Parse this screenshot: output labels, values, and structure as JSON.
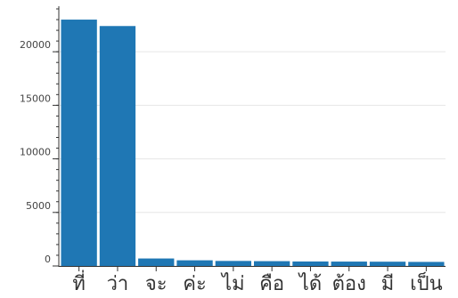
{
  "chart_data": {
    "type": "bar",
    "title": "",
    "xlabel": "",
    "ylabel": "",
    "categories": [
      "ที่",
      "ว่า",
      "จะ",
      "ค่ะ",
      "ไม่",
      "คือ",
      "ได้",
      "ต้อง",
      "มี",
      "เป็น"
    ],
    "values": [
      23000,
      22400,
      700,
      530,
      470,
      450,
      420,
      410,
      400,
      380
    ],
    "ylim": [
      0,
      24000
    ],
    "yticks": [
      0,
      5000,
      10000,
      15000,
      20000
    ],
    "grid": true,
    "legend": "none",
    "bar_color": "#1f77b4",
    "grid_color": "#e6e6e6",
    "axis_color": "#333333"
  }
}
